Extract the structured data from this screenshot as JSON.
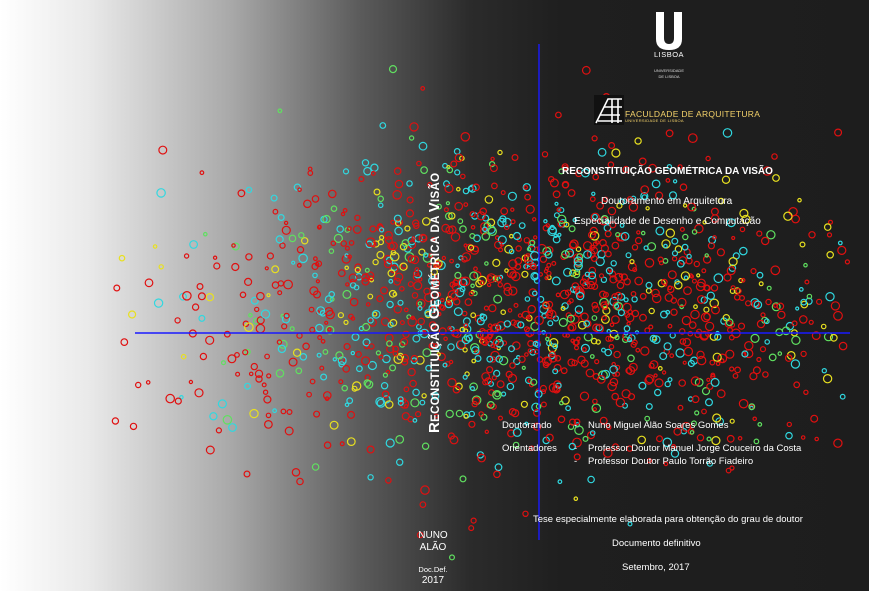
{
  "cover": {
    "spine_title_first": "R",
    "spine_title_rest1": "ECONSTITUIÇÃO ",
    "spine_title_g": "G",
    "spine_title_rest2": "EOMÉTRICA DA ",
    "spine_title_v": "V",
    "spine_title_rest3": "ISÃO",
    "title": "RECONSTITUIÇÃO GEOMÉTRICA DA VISÃO",
    "degree": "Doutoramento em Arquitetura",
    "speciality": "Especialidade de Desenho e Computação",
    "doutorando_label": "Doutorando",
    "doutorando_name": "Nuno Miguel Alão Soares Gomes",
    "orientadores_label": "Orientadores",
    "orientador_1": "Professor Doutor Manuel Jorge Couceiro da Costa",
    "orientador_2": "Professor Doutor Paulo Torrão Fiadeiro",
    "dash": "-",
    "thesis_note": "Tese especialmente elaborada para obtenção do grau de doutor",
    "doc_status": "Documento definitivo",
    "date": "Setembro, 2017"
  },
  "spine": {
    "name_line1": "NUNO",
    "name_line2": "ALÃO",
    "doc": "Doc.Def.",
    "year": "2017"
  },
  "logos": {
    "ulisboa_wordmark": "LISBOA",
    "ulisboa_sub1": "UNIVERSIDADE",
    "ulisboa_sub2": "DE LISBOA",
    "fa_name": "FACULDADE DE ARQUITETURA",
    "fa_sub": "UNIVERSIDADE DE LISBOA"
  },
  "colors": {
    "axis": "#1a1aff",
    "dot_red": "#e01010",
    "dot_cyan": "#30d8e0",
    "dot_yellow": "#e8e020",
    "dot_green": "#60e060",
    "fa_gold": "#f4d26a"
  },
  "icons": {
    "university": "ulisboa-u-logo",
    "faculty": "faculdade-arquitetura-logo"
  }
}
